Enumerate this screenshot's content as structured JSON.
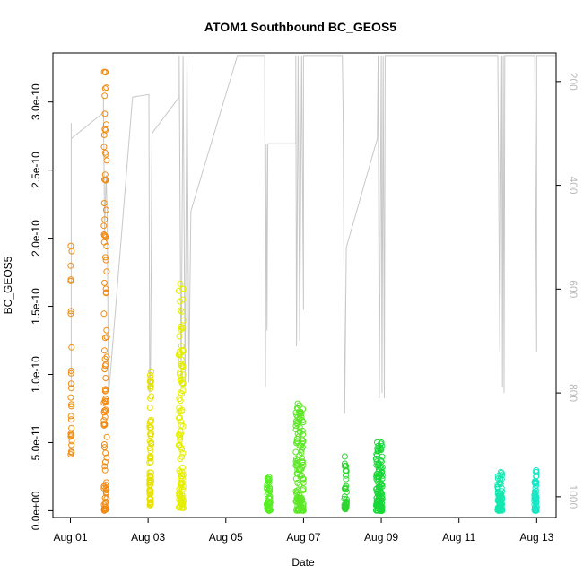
{
  "chart_data": {
    "type": "scatter",
    "title": "ATOM1 Southbound BC_GEOS5",
    "xlabel": "Date",
    "ylabel": "BC_GEOS5",
    "x_ticks": [
      "Aug 01",
      "Aug 03",
      "Aug 05",
      "Aug 07",
      "Aug 09",
      "Aug 11",
      "Aug 13"
    ],
    "x_tick_days": [
      1,
      3,
      5,
      7,
      9,
      11,
      13
    ],
    "xlim": [
      0.55,
      13.5
    ],
    "ylim": [
      -5e-12,
      3.36e-10
    ],
    "y_ticks": [
      "0.0e+00",
      "5.0e-11",
      "1.0e-10",
      "1.5e-10",
      "2.0e-10",
      "2.5e-10",
      "3.0e-10"
    ],
    "y_tick_values": [
      0,
      5e-11,
      1e-10,
      1.5e-10,
      2e-10,
      2.5e-10,
      3e-10
    ],
    "y2_ticks": [
      "200",
      "400",
      "600",
      "800",
      "1000"
    ],
    "y2_tick_values": [
      200,
      400,
      600,
      800,
      1000
    ],
    "y2lim": [
      1040,
      145
    ],
    "grid": false,
    "colors": {
      "points_start": "#ee8a12",
      "points_mid": "#e4f000",
      "points_green": "#22dd22",
      "points_end": "#12e8c0",
      "pressure_line": "#c8c8c8",
      "axis": "#000000",
      "axis2_label": "#bbbbbb"
    },
    "point_clusters": [
      {
        "day": 1.02,
        "width": 0.03,
        "min": 4e-11,
        "max": 1.98e-10,
        "n": 28,
        "color": "#ef8c14"
      },
      {
        "day": 1.9,
        "width": 0.08,
        "min": 0.0,
        "max": 3.27e-10,
        "n": 95,
        "color": "#f28a10"
      },
      {
        "day": 3.06,
        "width": 0.05,
        "min": 4e-12,
        "max": 1.03e-10,
        "n": 70,
        "color": "#e6e000"
      },
      {
        "day": 3.85,
        "width": 0.12,
        "min": 2e-12,
        "max": 1.67e-10,
        "n": 110,
        "color": "#e4ee00"
      },
      {
        "day": 6.1,
        "width": 0.1,
        "min": 0.0,
        "max": 2.6e-11,
        "n": 45,
        "color": "#55ee22"
      },
      {
        "day": 6.9,
        "width": 0.2,
        "min": 0.0,
        "max": 8e-11,
        "n": 120,
        "color": "#5ae822"
      },
      {
        "day": 8.08,
        "width": 0.06,
        "min": 1e-12,
        "max": 4.4e-11,
        "n": 40,
        "color": "#2ed630"
      },
      {
        "day": 8.95,
        "width": 0.16,
        "min": 0.0,
        "max": 5.1e-11,
        "n": 120,
        "color": "#18d838"
      },
      {
        "day": 12.05,
        "width": 0.12,
        "min": 0.0,
        "max": 2.9e-11,
        "n": 80,
        "color": "#14e8b0"
      },
      {
        "day": 12.97,
        "width": 0.06,
        "min": 0.0,
        "max": 3.1e-11,
        "n": 50,
        "color": "#14e8c6"
      }
    ],
    "pressure_path": [
      [
        1.02,
        280
      ],
      [
        1.02,
        790
      ],
      [
        1.02,
        310
      ],
      [
        1.85,
        260
      ],
      [
        1.85,
        230
      ],
      [
        1.88,
        490
      ],
      [
        1.92,
        380
      ],
      [
        1.95,
        460
      ],
      [
        1.98,
        800
      ],
      [
        2.0,
        790
      ],
      [
        2.6,
        230
      ],
      [
        3.02,
        225
      ],
      [
        3.04,
        800
      ],
      [
        3.06,
        780
      ],
      [
        3.08,
        550
      ],
      [
        3.1,
        300
      ],
      [
        3.8,
        230
      ],
      [
        3.8,
        150
      ],
      [
        3.85,
        790
      ],
      [
        3.9,
        150
      ],
      [
        3.95,
        790
      ],
      [
        4.0,
        150
      ],
      [
        4.05,
        780
      ],
      [
        4.1,
        450
      ],
      [
        5.3,
        150
      ],
      [
        6.0,
        150
      ],
      [
        6.02,
        790
      ],
      [
        6.04,
        320
      ],
      [
        6.06,
        680
      ],
      [
        6.08,
        320
      ],
      [
        6.8,
        320
      ],
      [
        6.8,
        150
      ],
      [
        6.82,
        710
      ],
      [
        6.86,
        150
      ],
      [
        6.9,
        700
      ],
      [
        6.95,
        150
      ],
      [
        7.0,
        640
      ],
      [
        7.0,
        150
      ],
      [
        7.6,
        150
      ],
      [
        8.0,
        150
      ],
      [
        8.02,
        270
      ],
      [
        8.06,
        840
      ],
      [
        8.1,
        520
      ],
      [
        8.9,
        310
      ],
      [
        8.92,
        150
      ],
      [
        8.95,
        810
      ],
      [
        9.0,
        150
      ],
      [
        9.02,
        800
      ],
      [
        9.05,
        150
      ],
      [
        9.08,
        810
      ],
      [
        9.1,
        150
      ],
      [
        10.2,
        150
      ],
      [
        12.0,
        150
      ],
      [
        12.05,
        720
      ],
      [
        12.1,
        150
      ],
      [
        12.12,
        790
      ],
      [
        12.14,
        150
      ],
      [
        12.16,
        800
      ],
      [
        12.18,
        150
      ],
      [
        12.95,
        150
      ],
      [
        13.0,
        720
      ],
      [
        13.0,
        150
      ],
      [
        13.5,
        150
      ]
    ]
  }
}
